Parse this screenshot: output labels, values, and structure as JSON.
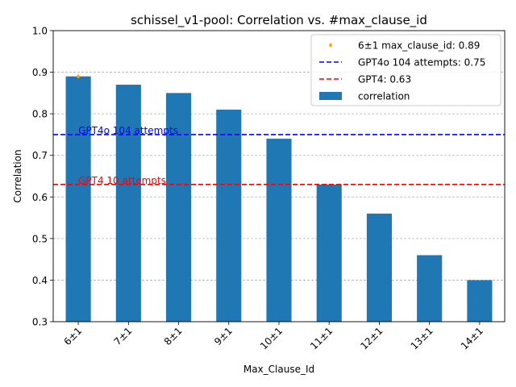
{
  "chart_data": {
    "type": "bar",
    "title": "schissel_v1-pool: Correlation vs. #max_clause_id",
    "xlabel": "Max_Clause_Id",
    "ylabel": "Correlation",
    "ylim": [
      0.3,
      1.0
    ],
    "yticks": [
      "0.3",
      "0.4",
      "0.5",
      "0.6",
      "0.7",
      "0.8",
      "0.9",
      "1.0"
    ],
    "grid": "horizontal dashed",
    "categories": [
      "6±1",
      "7±1",
      "8±1",
      "9±1",
      "10±1",
      "11±1",
      "12±1",
      "13±1",
      "14±1"
    ],
    "series": [
      {
        "name": "correlation",
        "color": "#1f77b4",
        "values": [
          0.89,
          0.87,
          0.85,
          0.81,
          0.74,
          0.63,
          0.56,
          0.46,
          0.4
        ]
      }
    ],
    "marker": {
      "label": "6±1 max_clause_id: 0.89",
      "category": "6±1",
      "value": 0.89,
      "color": "#ffa500"
    },
    "reference_lines": [
      {
        "legend": "GPT4o 104 attempts: 0.75",
        "annotation": "GPT4o 104 attempts",
        "value": 0.75,
        "color": "#0000ff"
      },
      {
        "legend": "GPT4: 0.63",
        "annotation": "GPT4 10 attempts",
        "value": 0.63,
        "color": "#ff0000"
      }
    ],
    "legend_position": "top-right"
  }
}
